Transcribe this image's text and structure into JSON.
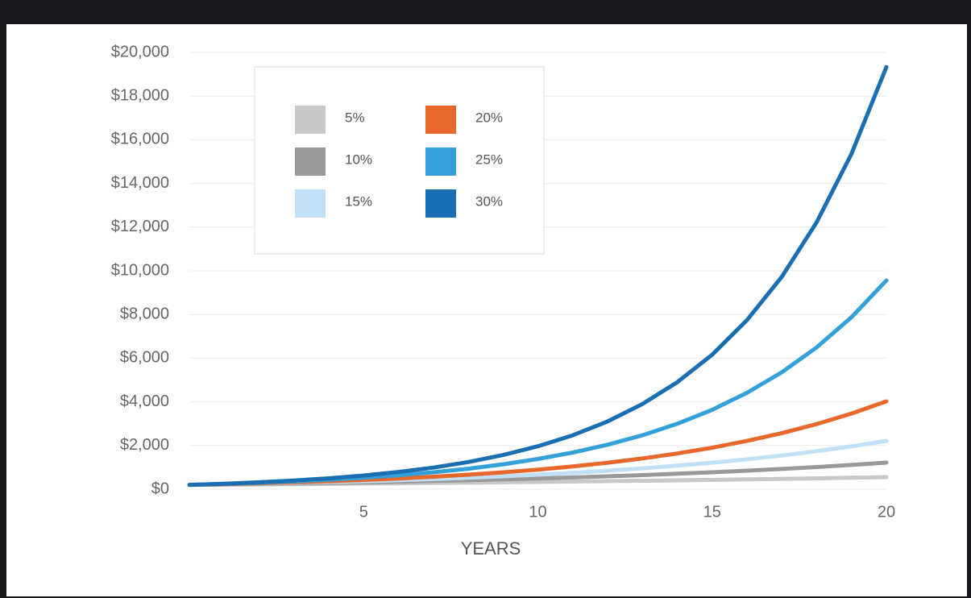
{
  "chart_data": {
    "type": "line",
    "x_label": "YEARS",
    "x": [
      0,
      1,
      2,
      3,
      4,
      5,
      6,
      7,
      8,
      9,
      10,
      11,
      12,
      13,
      14,
      15,
      16,
      17,
      18,
      19,
      20
    ],
    "xlim": [
      0,
      20
    ],
    "xticks": [
      5,
      10,
      15,
      20
    ],
    "ylim": [
      0,
      20000
    ],
    "yticks": [
      {
        "value": 0,
        "label": "$0"
      },
      {
        "value": 2000,
        "label": "$2,000"
      },
      {
        "value": 4000,
        "label": "$4,000"
      },
      {
        "value": 6000,
        "label": "$6,000"
      },
      {
        "value": 8000,
        "label": "$8,000"
      },
      {
        "value": 10000,
        "label": "$10,000"
      },
      {
        "value": 12000,
        "label": "$12,000"
      },
      {
        "value": 14000,
        "label": "$14,000"
      },
      {
        "value": 16000,
        "label": "$16,000"
      },
      {
        "value": 18000,
        "label": "$18,000"
      },
      {
        "value": 20000,
        "label": "$20,000"
      }
    ],
    "grid": true,
    "series": [
      {
        "name": "5%",
        "color": "#c8c8c8",
        "values": [
          200,
          210,
          221,
          233,
          245,
          258,
          271,
          285,
          300,
          316,
          332,
          350,
          368,
          387,
          407,
          428,
          451,
          474,
          499,
          525,
          553
        ]
      },
      {
        "name": "10%",
        "color": "#999999",
        "values": [
          200,
          219,
          240,
          262,
          287,
          314,
          343,
          376,
          411,
          450,
          493,
          539,
          590,
          646,
          707,
          774,
          847,
          927,
          1015,
          1111,
          1218
        ]
      },
      {
        "name": "15%",
        "color": "#bfe0f5",
        "values": [
          200,
          226,
          254,
          287,
          323,
          365,
          411,
          464,
          523,
          590,
          665,
          750,
          846,
          954,
          1076,
          1213,
          1368,
          1543,
          1740,
          1962,
          2214
        ]
      },
      {
        "name": "20%",
        "color": "#e8672a",
        "values": [
          200,
          232,
          270,
          314,
          365,
          424,
          492,
          572,
          665,
          772,
          897,
          1043,
          1212,
          1408,
          1636,
          1901,
          2209,
          2567,
          2983,
          3466,
          4022
        ]
      },
      {
        "name": "25%",
        "color": "#33a0da",
        "values": [
          200,
          243,
          294,
          357,
          433,
          526,
          638,
          774,
          939,
          1140,
          1383,
          1678,
          2036,
          2470,
          2997,
          3636,
          4412,
          5353,
          6495,
          7880,
          9557
        ]
      },
      {
        "name": "30%",
        "color": "#1a6fb3",
        "values": [
          200,
          251,
          316,
          397,
          499,
          627,
          788,
          990,
          1244,
          1564,
          1965,
          2470,
          3104,
          3900,
          4902,
          6160,
          7741,
          9729,
          12226,
          15365,
          19330
        ]
      }
    ]
  }
}
